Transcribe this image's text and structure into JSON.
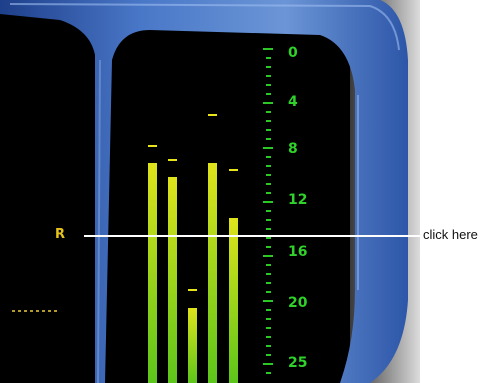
{
  "meter": {
    "channel_label": "R",
    "scale_labels": [
      "0",
      "4",
      "8",
      "12",
      "16",
      "20",
      "25"
    ],
    "bars": [
      {
        "level": 0.64,
        "peak": 0.67
      },
      {
        "level": 0.6,
        "peak": 0.63
      },
      {
        "level": 0.22,
        "peak": 0.25
      },
      {
        "level": 0.64,
        "peak": 0.76
      },
      {
        "level": 0.48,
        "peak": 0.6
      }
    ],
    "colors": {
      "bar_top": "#dfe31b",
      "bar_bottom": "#5cc61a",
      "scale": "#2fd12a",
      "label": "#e6c21c"
    }
  },
  "callout": {
    "text": "click here"
  }
}
